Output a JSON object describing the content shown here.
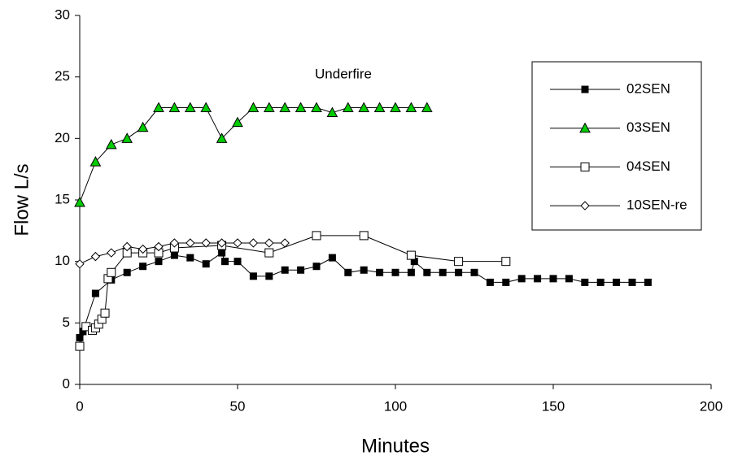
{
  "chart_data": {
    "type": "line",
    "annotation": "Underfire",
    "x_label": "Minutes",
    "y_label": "Flow L/s",
    "xlim": [
      0,
      200
    ],
    "xticks": [
      0,
      50,
      100,
      150,
      200
    ],
    "ylim": [
      0,
      30
    ],
    "yticks": [
      0,
      5,
      10,
      15,
      20,
      25,
      30
    ],
    "grid": false,
    "legend": "right",
    "series": [
      {
        "name": "02SEN",
        "color": "#000000",
        "marker": "square-filled",
        "x": [
          0,
          1,
          5,
          10,
          15,
          20,
          25,
          30,
          35,
          40,
          45,
          46,
          50,
          55,
          60,
          65,
          70,
          75,
          80,
          85,
          90,
          95,
          100,
          105,
          106,
          110,
          115,
          120,
          125,
          130,
          135,
          140,
          145,
          150,
          155,
          160,
          165,
          170,
          175,
          180
        ],
        "values": [
          3.8,
          4.3,
          7.4,
          8.5,
          9.1,
          9.6,
          10.0,
          10.5,
          10.3,
          9.8,
          10.7,
          10.0,
          10.0,
          8.8,
          8.8,
          9.3,
          9.3,
          9.6,
          10.3,
          9.1,
          9.3,
          9.1,
          9.1,
          9.1,
          10.0,
          9.1,
          9.1,
          9.1,
          9.1,
          8.3,
          8.3,
          8.6,
          8.6,
          8.6,
          8.6,
          8.3,
          8.3,
          8.3,
          8.3,
          8.3
        ]
      },
      {
        "name": "03SEN",
        "color": "#00cc00",
        "marker": "triangle",
        "x": [
          0,
          5,
          10,
          15,
          20,
          25,
          30,
          35,
          40,
          45,
          50,
          55,
          60,
          65,
          70,
          75,
          80,
          85,
          90,
          95,
          100,
          105,
          110
        ],
        "values": [
          14.8,
          18.1,
          19.5,
          20.0,
          20.9,
          22.5,
          22.5,
          22.5,
          22.5,
          20.0,
          21.3,
          22.5,
          22.5,
          22.5,
          22.5,
          22.5,
          22.1,
          22.5,
          22.5,
          22.5,
          22.5,
          22.5,
          22.5
        ]
      },
      {
        "name": "04SEN",
        "color": "#000000",
        "marker": "square-open",
        "x": [
          0,
          2,
          4,
          5,
          6,
          7,
          8,
          9,
          10,
          15,
          20,
          25,
          30,
          45,
          60,
          75,
          90,
          105,
          120,
          135
        ],
        "values": [
          3.1,
          4.7,
          4.4,
          4.6,
          4.9,
          5.3,
          5.8,
          8.6,
          9.1,
          10.7,
          10.7,
          10.7,
          11.1,
          11.3,
          10.7,
          12.1,
          12.1,
          10.5,
          10.0,
          10.0
        ]
      },
      {
        "name": "10SEN-re",
        "color": "#000000",
        "marker": "diamond-open",
        "x": [
          0,
          5,
          10,
          15,
          20,
          25,
          30,
          35,
          40,
          45,
          50,
          55,
          60,
          65
        ],
        "values": [
          9.8,
          10.4,
          10.7,
          11.2,
          11.0,
          11.2,
          11.5,
          11.5,
          11.5,
          11.5,
          11.5,
          11.5,
          11.5,
          11.5
        ]
      }
    ]
  }
}
